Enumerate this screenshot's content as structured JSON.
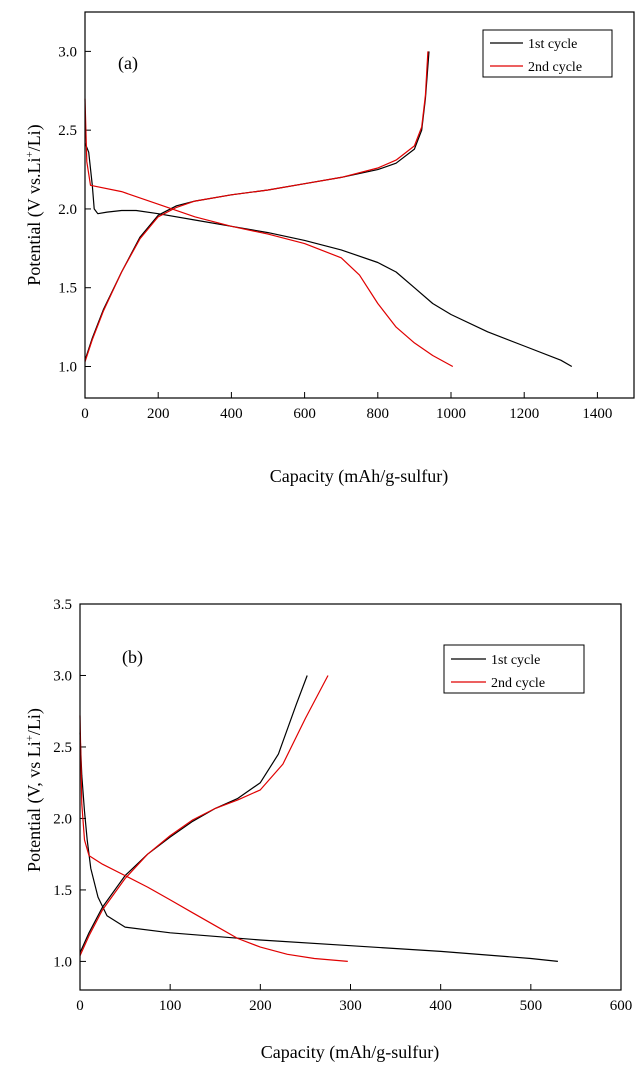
{
  "chart_data": [
    {
      "type": "line",
      "panel_label": "(a)",
      "xlabel": "Capacity (mAh/g-sulfur)",
      "ylabel": "Potential (V vs.Li+/Li)",
      "xlim": [
        0,
        1500
      ],
      "ylim": [
        0.8,
        3.25
      ],
      "x_ticks": [
        0,
        200,
        400,
        600,
        800,
        1000,
        1200,
        1400
      ],
      "y_ticks": [
        1.0,
        1.5,
        2.0,
        2.5,
        3.0
      ],
      "x_tick_labels": [
        "0",
        "200",
        "400",
        "600",
        "800",
        "1000",
        "1200",
        "1400"
      ],
      "y_tick_labels": [
        "1.0",
        "1.5",
        "2.0",
        "2.5",
        "3.0"
      ],
      "grid": false,
      "legend_position": "top-right",
      "series": [
        {
          "name": "1st cycle",
          "color": "#000000",
          "segments": [
            [
              [
                0,
                2.42
              ],
              [
                10,
                2.36
              ],
              [
                20,
                2.15
              ],
              [
                25,
                2.0
              ],
              [
                35,
                1.97
              ],
              [
                60,
                1.98
              ],
              [
                100,
                1.99
              ],
              [
                140,
                1.99
              ],
              [
                200,
                1.97
              ],
              [
                300,
                1.93
              ],
              [
                400,
                1.89
              ],
              [
                500,
                1.85
              ],
              [
                600,
                1.8
              ],
              [
                700,
                1.74
              ],
              [
                800,
                1.66
              ],
              [
                850,
                1.6
              ],
              [
                900,
                1.5
              ],
              [
                950,
                1.4
              ],
              [
                1000,
                1.33
              ],
              [
                1100,
                1.22
              ],
              [
                1200,
                1.13
              ],
              [
                1300,
                1.04
              ],
              [
                1330,
                1.0
              ]
            ],
            [
              [
                0,
                1.04
              ],
              [
                20,
                1.18
              ],
              [
                50,
                1.36
              ],
              [
                100,
                1.6
              ],
              [
                150,
                1.82
              ],
              [
                200,
                1.96
              ],
              [
                250,
                2.02
              ],
              [
                300,
                2.05
              ],
              [
                400,
                2.09
              ],
              [
                500,
                2.12
              ],
              [
                600,
                2.16
              ],
              [
                700,
                2.2
              ],
              [
                800,
                2.25
              ],
              [
                850,
                2.29
              ],
              [
                900,
                2.38
              ],
              [
                920,
                2.5
              ],
              [
                930,
                2.7
              ],
              [
                940,
                3.0
              ]
            ]
          ]
        },
        {
          "name": "2nd cycle",
          "color": "#e00000",
          "segments": [
            [
              [
                0,
                2.7
              ],
              [
                5,
                2.3
              ],
              [
                15,
                2.15
              ],
              [
                100,
                2.11
              ],
              [
                200,
                2.03
              ],
              [
                300,
                1.95
              ],
              [
                400,
                1.89
              ],
              [
                500,
                1.84
              ],
              [
                600,
                1.78
              ],
              [
                700,
                1.69
              ],
              [
                750,
                1.58
              ],
              [
                800,
                1.4
              ],
              [
                850,
                1.25
              ],
              [
                900,
                1.15
              ],
              [
                950,
                1.07
              ],
              [
                1005,
                1.0
              ]
            ],
            [
              [
                0,
                1.03
              ],
              [
                20,
                1.17
              ],
              [
                50,
                1.35
              ],
              [
                100,
                1.6
              ],
              [
                150,
                1.81
              ],
              [
                200,
                1.95
              ],
              [
                250,
                2.01
              ],
              [
                300,
                2.05
              ],
              [
                400,
                2.09
              ],
              [
                500,
                2.12
              ],
              [
                600,
                2.16
              ],
              [
                700,
                2.2
              ],
              [
                800,
                2.26
              ],
              [
                850,
                2.31
              ],
              [
                900,
                2.4
              ],
              [
                920,
                2.52
              ],
              [
                930,
                2.72
              ],
              [
                937,
                3.0
              ]
            ]
          ]
        }
      ]
    },
    {
      "type": "line",
      "panel_label": "(b)",
      "xlabel": "Capacity (mAh/g-sulfur)",
      "ylabel": "Potential (V, vs Li+/Li)",
      "xlim": [
        0,
        600
      ],
      "ylim": [
        0.8,
        3.5
      ],
      "x_ticks": [
        0,
        100,
        200,
        300,
        400,
        500,
        600
      ],
      "y_ticks": [
        1.0,
        1.5,
        2.0,
        2.5,
        3.0,
        3.5
      ],
      "x_tick_labels": [
        "0",
        "100",
        "200",
        "300",
        "400",
        "500",
        "600"
      ],
      "y_tick_labels": [
        "1.0",
        "1.5",
        "2.0",
        "2.5",
        "3.0",
        "3.5"
      ],
      "grid": false,
      "legend_position": "top-right",
      "series": [
        {
          "name": "1st cycle",
          "color": "#000000",
          "segments": [
            [
              [
                0,
                2.6
              ],
              [
                2,
                2.3
              ],
              [
                5,
                2.05
              ],
              [
                8,
                1.85
              ],
              [
                12,
                1.65
              ],
              [
                20,
                1.45
              ],
              [
                30,
                1.32
              ],
              [
                50,
                1.24
              ],
              [
                100,
                1.2
              ],
              [
                200,
                1.15
              ],
              [
                300,
                1.11
              ],
              [
                400,
                1.07
              ],
              [
                500,
                1.02
              ],
              [
                530,
                1.0
              ]
            ],
            [
              [
                0,
                1.06
              ],
              [
                10,
                1.2
              ],
              [
                25,
                1.38
              ],
              [
                50,
                1.6
              ],
              [
                75,
                1.75
              ],
              [
                100,
                1.87
              ],
              [
                125,
                1.98
              ],
              [
                150,
                2.07
              ],
              [
                175,
                2.14
              ],
              [
                200,
                2.25
              ],
              [
                220,
                2.45
              ],
              [
                240,
                2.8
              ],
              [
                252,
                3.0
              ]
            ]
          ]
        },
        {
          "name": "2nd cycle",
          "color": "#e00000",
          "segments": [
            [
              [
                0,
                2.72
              ],
              [
                2,
                2.1
              ],
              [
                5,
                1.85
              ],
              [
                10,
                1.74
              ],
              [
                25,
                1.68
              ],
              [
                50,
                1.6
              ],
              [
                75,
                1.52
              ],
              [
                100,
                1.43
              ],
              [
                125,
                1.34
              ],
              [
                150,
                1.25
              ],
              [
                175,
                1.16
              ],
              [
                200,
                1.1
              ],
              [
                230,
                1.05
              ],
              [
                260,
                1.02
              ],
              [
                297,
                1.0
              ]
            ],
            [
              [
                0,
                1.04
              ],
              [
                10,
                1.18
              ],
              [
                25,
                1.36
              ],
              [
                50,
                1.58
              ],
              [
                75,
                1.75
              ],
              [
                100,
                1.88
              ],
              [
                125,
                1.99
              ],
              [
                150,
                2.07
              ],
              [
                175,
                2.13
              ],
              [
                200,
                2.2
              ],
              [
                225,
                2.38
              ],
              [
                250,
                2.7
              ],
              [
                275,
                3.0
              ]
            ]
          ]
        }
      ]
    }
  ]
}
